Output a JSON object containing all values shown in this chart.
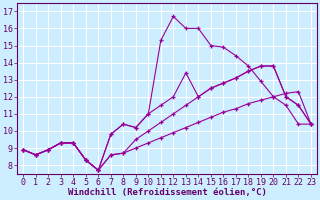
{
  "xlabel": "Windchill (Refroidissement éolien,°C)",
  "background_color": "#cceeff",
  "line_color": "#990099",
  "grid_color": "#ffffff",
  "xlim": [
    -0.5,
    23.5
  ],
  "ylim": [
    7.5,
    17.5
  ],
  "xticks": [
    0,
    1,
    2,
    3,
    4,
    5,
    6,
    7,
    8,
    9,
    10,
    11,
    12,
    13,
    14,
    15,
    16,
    17,
    18,
    19,
    20,
    21,
    22,
    23
  ],
  "yticks": [
    8,
    9,
    10,
    11,
    12,
    13,
    14,
    15,
    16,
    17
  ],
  "line1_x": [
    0,
    1,
    2,
    3,
    4,
    5,
    6,
    7,
    8,
    9,
    10,
    11,
    12,
    13,
    14,
    15,
    16,
    17,
    18,
    19,
    20,
    21,
    22,
    23
  ],
  "line1_y": [
    8.9,
    8.6,
    8.9,
    9.3,
    9.3,
    8.3,
    7.7,
    8.6,
    8.7,
    9.0,
    9.3,
    9.6,
    9.9,
    10.2,
    10.5,
    10.8,
    11.1,
    11.3,
    11.6,
    11.8,
    12.0,
    12.2,
    12.3,
    10.4
  ],
  "line2_x": [
    0,
    1,
    2,
    3,
    4,
    5,
    6,
    7,
    8,
    9,
    10,
    11,
    12,
    13,
    14,
    15,
    16,
    17,
    18,
    19,
    20,
    21,
    22,
    23
  ],
  "line2_y": [
    8.9,
    8.6,
    8.9,
    9.3,
    9.3,
    8.3,
    7.7,
    9.8,
    10.4,
    10.2,
    11.0,
    15.3,
    16.7,
    16.0,
    16.0,
    15.0,
    14.9,
    14.4,
    13.8,
    12.9,
    12.0,
    11.5,
    10.4,
    10.4
  ],
  "line3_x": [
    0,
    1,
    2,
    3,
    4,
    5,
    6,
    7,
    8,
    9,
    10,
    11,
    12,
    13,
    14,
    15,
    16,
    17,
    18,
    19,
    20,
    21,
    22,
    23
  ],
  "line3_y": [
    8.9,
    8.6,
    8.9,
    9.3,
    9.3,
    8.3,
    7.7,
    8.6,
    8.7,
    9.5,
    10.0,
    10.5,
    11.0,
    11.5,
    12.0,
    12.5,
    12.8,
    13.1,
    13.5,
    13.8,
    13.8,
    12.0,
    11.5,
    10.4
  ],
  "line4_x": [
    0,
    1,
    2,
    3,
    4,
    5,
    6,
    7,
    8,
    9,
    10,
    11,
    12,
    13,
    14,
    15,
    16,
    17,
    18,
    19,
    20,
    21,
    22,
    23
  ],
  "line4_y": [
    8.9,
    8.6,
    8.9,
    9.3,
    9.3,
    8.3,
    7.7,
    9.8,
    10.4,
    10.2,
    11.0,
    11.5,
    12.0,
    13.4,
    12.0,
    12.5,
    12.8,
    13.1,
    13.5,
    13.8,
    13.8,
    12.0,
    11.5,
    10.4
  ],
  "fontsize_label": 6.5,
  "fontsize_tick": 6
}
